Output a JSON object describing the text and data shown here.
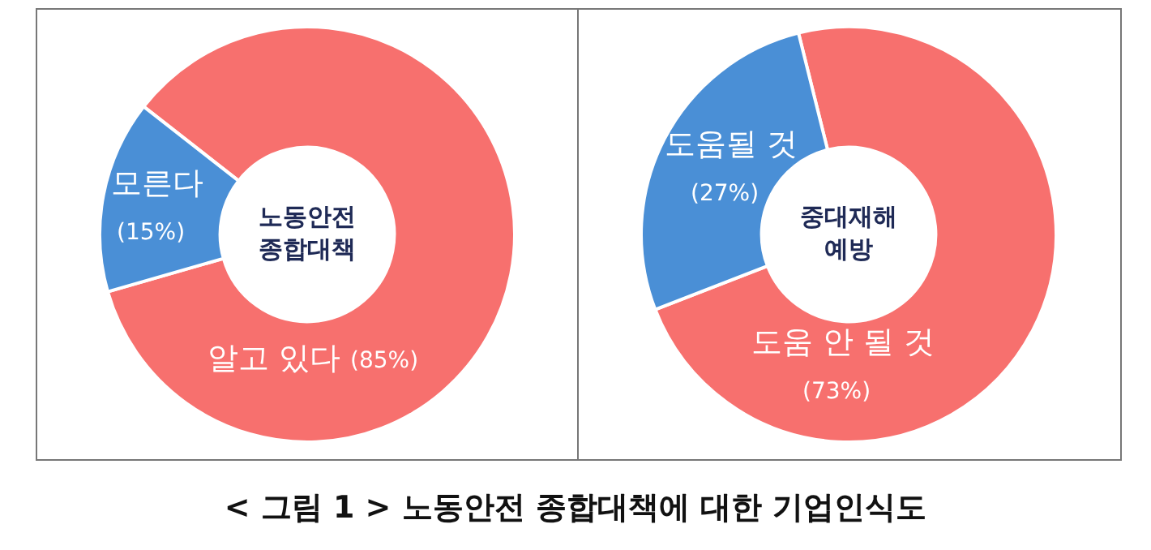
{
  "chart_data": [
    {
      "type": "donut",
      "title": "노동안전\n종합대책",
      "categories": [
        "알고 있다",
        "모른다"
      ],
      "values": [
        85,
        15
      ],
      "colors": [
        "#f7706e",
        "#4a8fd6"
      ],
      "value_labels": [
        "(85%)",
        "(15%)"
      ],
      "annotations": [
        "< 그림 1 > 노동안전 종합대책에 대한 기업인식도"
      ]
    },
    {
      "type": "donut",
      "title": "중대재해\n예방",
      "categories": [
        "도움 안 될 것",
        "도움될 것"
      ],
      "values": [
        73,
        27
      ],
      "colors": [
        "#f7706e",
        "#4a8fd6"
      ],
      "value_labels": [
        "(73%)",
        "(27%)"
      ]
    }
  ]
}
